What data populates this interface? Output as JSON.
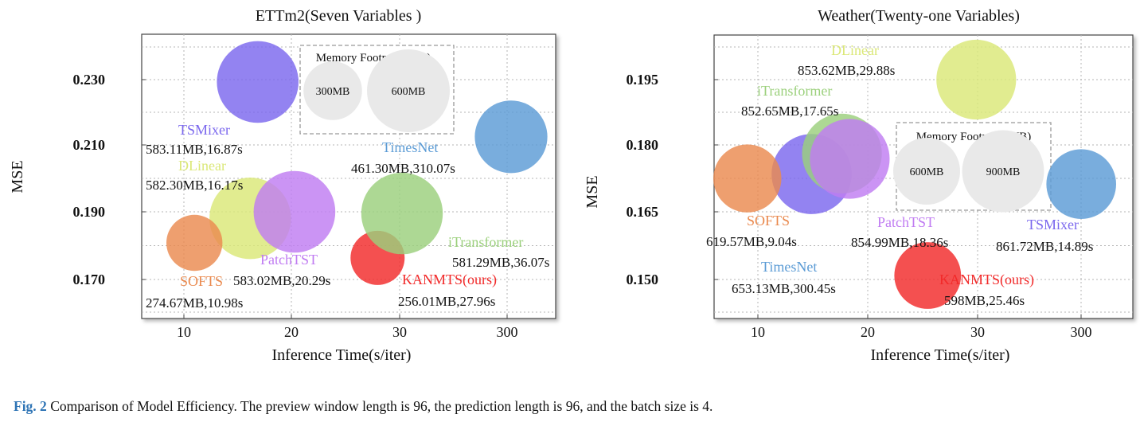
{
  "chart_data": [
    {
      "type": "scatter",
      "title": "ETTm2(Seven Variables )",
      "xlabel": "Inference Time(s/iter)",
      "ylabel": "MSE",
      "x_ticks": [
        "10",
        "20",
        "30",
        "300"
      ],
      "y_ticks": [
        "0.230",
        "0.210",
        "0.190",
        "0.170"
      ],
      "grid": true,
      "legend": {
        "title": "Memory Footprint(MB)",
        "placement": "top-center",
        "items": [
          {
            "label": "300MB",
            "memory_mb": 300
          },
          {
            "label": "600MB",
            "memory_mb": 600
          }
        ]
      },
      "series": [
        {
          "name": "TSMixer",
          "label": "583.11MB,16.87s",
          "memory_mb": 583.11,
          "time_s": 16.87,
          "mse": 0.2293,
          "color": "#7b68ee"
        },
        {
          "name": "DLinear",
          "label": "582.30MB,16.17s",
          "memory_mb": 582.3,
          "time_s": 16.17,
          "mse": 0.1875,
          "color": "#dbe878"
        },
        {
          "name": "PatchTST",
          "label": "583.02MB,20.29s",
          "memory_mb": 583.02,
          "time_s": 20.29,
          "mse": 0.1895,
          "color": "#c07cf2"
        },
        {
          "name": "SOFTS",
          "label": "274.67MB,10.98s",
          "memory_mb": 274.67,
          "time_s": 10.98,
          "mse": 0.18,
          "color": "#ea8a4f"
        },
        {
          "name": "TimesNet",
          "label": "461.30MB,310.07s",
          "memory_mb": 461.3,
          "time_s": 310.07,
          "mse": 0.2125,
          "color": "#5b9bd5"
        },
        {
          "name": "iTransformer",
          "label": "581.29MB,36.07s",
          "memory_mb": 581.29,
          "time_s": 36.07,
          "mse": 0.189,
          "color": "#9bd07c"
        },
        {
          "name": "KANMTS(ours)",
          "label": "256.01MB,27.96s",
          "memory_mb": 256.01,
          "time_s": 27.96,
          "mse": 0.1754,
          "color": "#f22a2a"
        }
      ]
    },
    {
      "type": "scatter",
      "title": "Weather(Twenty-one Variables)",
      "xlabel": "Inference Time(s/iter)",
      "ylabel": "MSE",
      "x_ticks": [
        "10",
        "20",
        "30",
        "300"
      ],
      "y_ticks": [
        "0.195",
        "0.180",
        "0.165",
        "0.150"
      ],
      "grid": true,
      "legend": {
        "title": "Memory Footprint(MB)",
        "placement": "center-right",
        "items": [
          {
            "label": "600MB",
            "memory_mb": 600
          },
          {
            "label": "900MB",
            "memory_mb": 900
          }
        ]
      },
      "series": [
        {
          "name": "DLinear",
          "label": "853.62MB,29.88s",
          "memory_mb": 853.62,
          "time_s": 29.88,
          "mse": 0.195,
          "color": "#dbe878"
        },
        {
          "name": "iTransformer",
          "label": "852.65MB,17.65s",
          "memory_mb": 852.65,
          "time_s": 17.65,
          "mse": 0.178,
          "color": "#9bd07c"
        },
        {
          "name": "PatchTST",
          "label": "854.99MB,18.36s",
          "memory_mb": 854.99,
          "time_s": 18.36,
          "mse": 0.1768,
          "color": "#c07cf2"
        },
        {
          "name": "SOFTS",
          "label": "619.57MB,9.04s",
          "memory_mb": 619.57,
          "time_s": 9.04,
          "mse": 0.1723,
          "color": "#ea8a4f"
        },
        {
          "name": "TSMixer",
          "label": "861.72MB,14.89s",
          "memory_mb": 861.72,
          "time_s": 14.89,
          "mse": 0.1733,
          "color": "#7b68ee"
        },
        {
          "name": "TimesNet",
          "label": "653.13MB,300.45s",
          "memory_mb": 653.13,
          "time_s": 300.45,
          "mse": 0.171,
          "color": "#5b9bd5"
        },
        {
          "name": "KANMTS(ours)",
          "label": "598MB,25.46s",
          "memory_mb": 598,
          "time_s": 25.46,
          "mse": 0.15,
          "color": "#f22a2a"
        }
      ]
    }
  ],
  "caption": {
    "lead": "Fig. 2",
    "text": "Comparison of Model Efficiency. The preview window length is 96, the prediction length is 96, and the batch size is 4."
  }
}
